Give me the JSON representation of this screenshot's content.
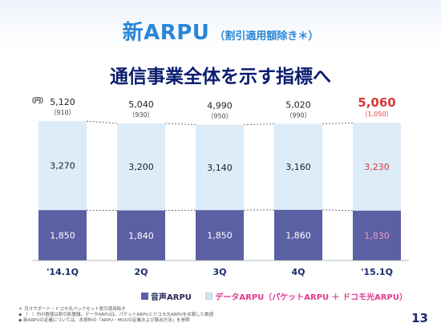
{
  "header": {
    "title": "新ARPU",
    "title_note": "（割引適用額除き＊）",
    "subtitle": "通信事業全体を示す指標へ"
  },
  "chart_data": {
    "type": "bar",
    "stacked": true,
    "y_unit": "（円）",
    "categories": [
      "'14.1Q",
      "2Q",
      "3Q",
      "4Q",
      "'15.1Q"
    ],
    "series": [
      {
        "name": "音声ARPU",
        "values": [
          1850,
          1840,
          1850,
          1860,
          1830
        ],
        "color": "#5b5fa3"
      },
      {
        "name": "データARPU（パケットARPU ＋ ドコモ光ARPU）",
        "values": [
          3270,
          3200,
          3140,
          3160,
          3230
        ],
        "color": "#dcecf9"
      }
    ],
    "totals": [
      5120,
      5040,
      4990,
      5020,
      5060
    ],
    "totals_paren": [
      "（910）",
      "（930）",
      "（950）",
      "（990）",
      "（1,050）"
    ],
    "highlight_index": 4,
    "highlight_color": "#d63a3a",
    "dashed_connectors": true,
    "grid": false
  },
  "legend": {
    "voice": "音声ARPU",
    "data": "データARPU（パケットARPU ＋ ドコモ光ARPU）"
  },
  "notes": [
    "＊ 月々サポート・ドコモ光パックセット割引適用除き",
    "◆ （　）内の数値は割引影響額。データARPUは、パケットARPUとドコモ光ARPUを合算した数値",
    "◆ 新ARPUの定義については、本資料の「ARPU・MOUの定義および算出方法」を参照"
  ],
  "page_number": "13"
}
